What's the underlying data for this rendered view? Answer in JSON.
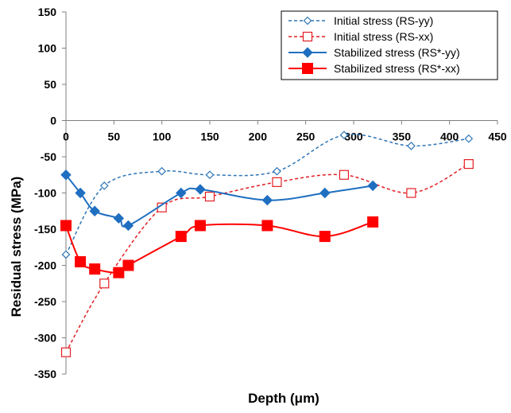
{
  "chart_data": {
    "type": "line",
    "xlabel": "Depth (μm)",
    "ylabel": "Residual stress (MPa)",
    "xlim": [
      0,
      450
    ],
    "ylim": [
      -350,
      150
    ],
    "x_ticks": [
      0,
      50,
      100,
      150,
      200,
      250,
      300,
      350,
      400,
      450
    ],
    "y_ticks": [
      150,
      100,
      50,
      0,
      -50,
      -100,
      -150,
      -200,
      -250,
      -300,
      -350
    ],
    "x_axis_position": "top (at y = 0)",
    "grid": false,
    "legend_position": "top-right",
    "series": [
      {
        "name": "Initial stress (RS-yy)",
        "color": "#2E75B6",
        "line": "dashed",
        "marker": "diamond-open",
        "x": [
          0,
          40,
          100,
          150,
          220,
          290,
          360,
          420
        ],
        "y": [
          -185,
          -90,
          -70,
          -75,
          -70,
          -20,
          -35,
          -25
        ]
      },
      {
        "name": "Initial stress (RS-xx)",
        "color": "#E31E24",
        "line": "dashed",
        "marker": "square-open",
        "x": [
          0,
          40,
          100,
          150,
          220,
          290,
          360,
          420
        ],
        "y": [
          -320,
          -225,
          -120,
          -105,
          -85,
          -75,
          -100,
          -60
        ]
      },
      {
        "name": "Stabilized stress (RS*-yy)",
        "color": "#1F6FC1",
        "line": "solid",
        "marker": "diamond-filled",
        "x": [
          0,
          15,
          30,
          55,
          65,
          120,
          140,
          210,
          270,
          320
        ],
        "y": [
          -75,
          -100,
          -125,
          -135,
          -145,
          -100,
          -95,
          -110,
          -100,
          -90
        ]
      },
      {
        "name": "Stabilized stress (RS*-xx)",
        "color": "#FF0000",
        "line": "solid",
        "marker": "square-filled",
        "x": [
          0,
          15,
          30,
          55,
          65,
          120,
          140,
          210,
          270,
          320
        ],
        "y": [
          -145,
          -195,
          -205,
          -210,
          -200,
          -160,
          -145,
          -145,
          -160,
          -140
        ]
      }
    ]
  }
}
